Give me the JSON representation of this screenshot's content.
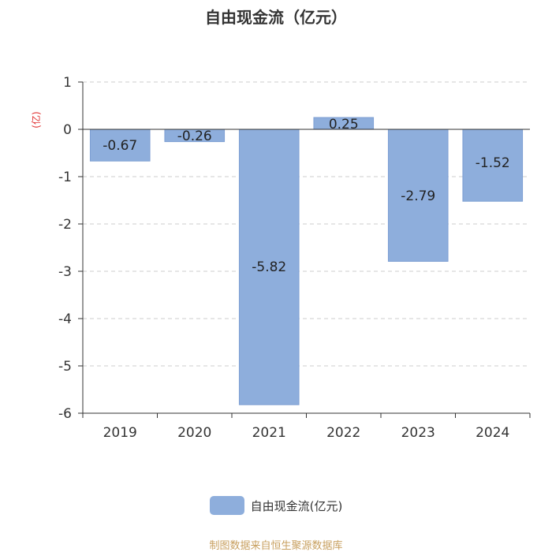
{
  "chart_data": {
    "type": "bar",
    "title": "自由现金流（亿元）",
    "ylabel": "(亿)",
    "categories": [
      "2019",
      "2020",
      "2021",
      "2022",
      "2023",
      "2024"
    ],
    "series": [
      {
        "name": "自由现金流(亿元)",
        "values": [
          -0.67,
          -0.26,
          -5.82,
          0.25,
          -2.79,
          -1.52
        ]
      }
    ],
    "data_labels": [
      "-0.67",
      "-0.26",
      "-5.82",
      "0.25",
      "-2.79",
      "-1.52"
    ],
    "ylim": [
      -6,
      1
    ],
    "yticks": [
      1,
      0,
      -1,
      -2,
      -3,
      -4,
      -5,
      -6
    ],
    "ytick_labels": [
      "1",
      "0",
      "-1",
      "-2",
      "-3",
      "-4",
      "-5",
      "-6"
    ],
    "grid": true,
    "legend_position": "bottom"
  },
  "colors": {
    "bar": "#8eaedc",
    "bar_edge": "#7d9fd3",
    "ylabel": "#e03030",
    "source": "#c8a060",
    "grid": "#cccccc",
    "axis": "#333333"
  },
  "source_text": "制图数据来自恒生聚源数据库"
}
